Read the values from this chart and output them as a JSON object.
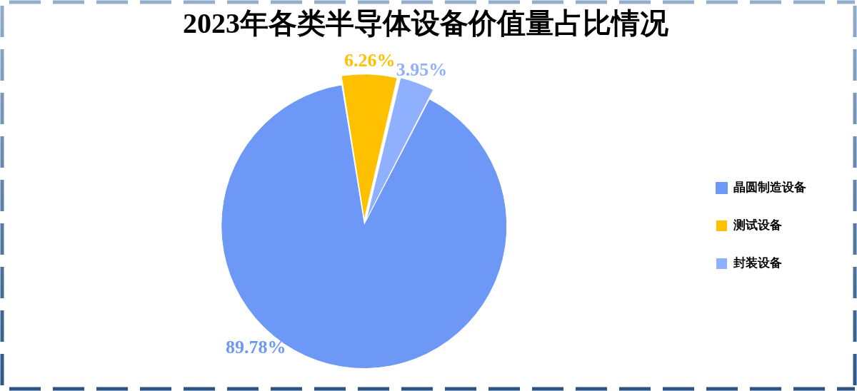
{
  "chart_data": {
    "type": "pie",
    "title": "2023年各类半导体设备价值量占比情况",
    "categories": [
      "晶圆制造设备",
      "测试设备",
      "封装设备"
    ],
    "values": [
      89.78,
      6.26,
      3.95
    ],
    "colors": [
      "#6d98f5",
      "#ffc000",
      "#8fb0ff"
    ],
    "value_labels": [
      "89.78%",
      "6.26%",
      "3.95%"
    ],
    "legend": "right"
  }
}
